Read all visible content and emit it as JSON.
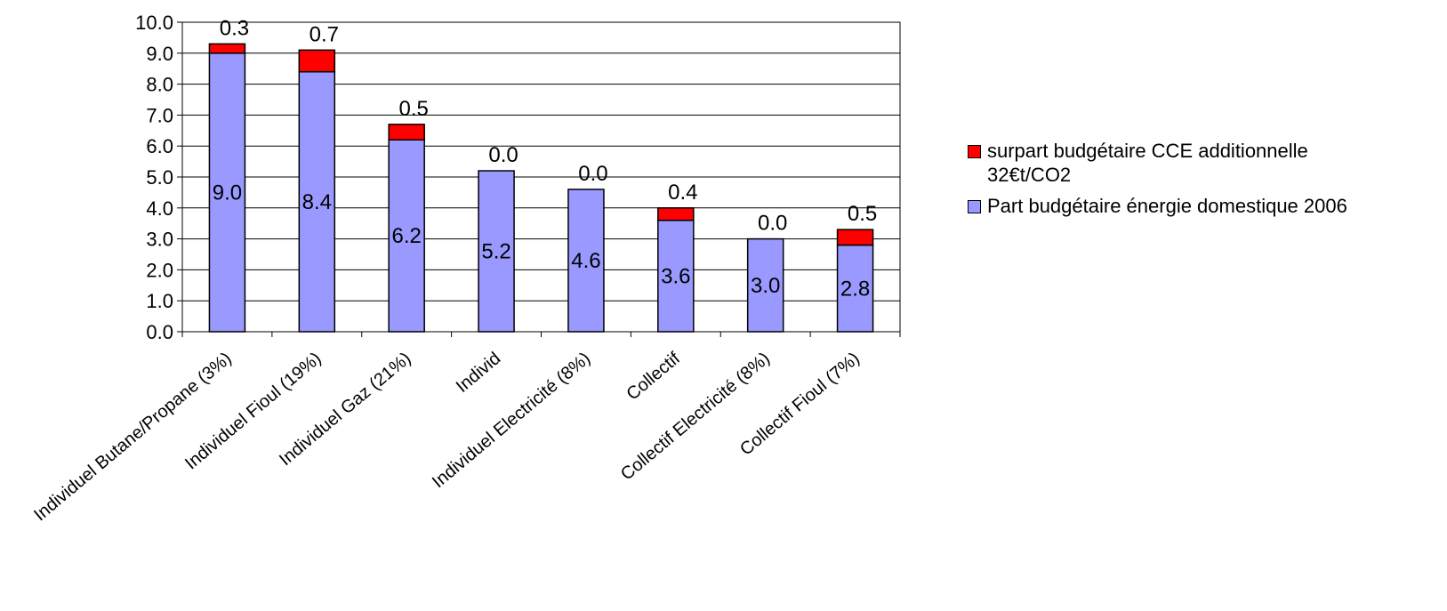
{
  "chart_data": {
    "type": "bar",
    "stacked": true,
    "title": "",
    "xlabel": "",
    "ylabel": "",
    "ylim": [
      0,
      10
    ],
    "yticks": [
      "0.0",
      "1.0",
      "2.0",
      "3.0",
      "4.0",
      "5.0",
      "6.0",
      "7.0",
      "8.0",
      "9.0",
      "10.0"
    ],
    "categories": [
      "Individuel Butane/Propane (3%)",
      "Individuel Fioul (19%)",
      "Individuel Gaz (21%)",
      "Individ",
      "Individuel Electricité (8%)",
      "Collectif",
      "Collectif Electricité (8%)",
      "Collectif Fioul (7%)"
    ],
    "series": [
      {
        "name": "Part budgétaire énergie domestique 2006",
        "color": "#9999ff",
        "values": [
          9.0,
          8.4,
          6.2,
          5.2,
          4.6,
          3.6,
          3.0,
          2.8
        ],
        "labels": [
          "9.0",
          "8.4",
          "6.2",
          "5.2",
          "4.6",
          "3.6",
          "3.0",
          "2.8"
        ]
      },
      {
        "name": "surpart budgétaire CCE additionnelle 32€t/CO2",
        "color": "#ff0000",
        "values": [
          0.3,
          0.7,
          0.5,
          0.0,
          0.0,
          0.4,
          0.0,
          0.5
        ],
        "labels": [
          "0.3",
          "0.7",
          "0.5",
          "0.0",
          "0.0",
          "0.4",
          "0.0",
          "0.5"
        ]
      }
    ],
    "grid": true,
    "legend_position": "right"
  },
  "legend": {
    "items": [
      {
        "label_line1": "surpart budgétaire CCE additionnelle",
        "label_line2": "32€t/CO2",
        "color": "#ff0000"
      },
      {
        "label_line1": "Part budgétaire énergie domestique 2006",
        "label_line2": "",
        "color": "#9999ff"
      }
    ]
  }
}
